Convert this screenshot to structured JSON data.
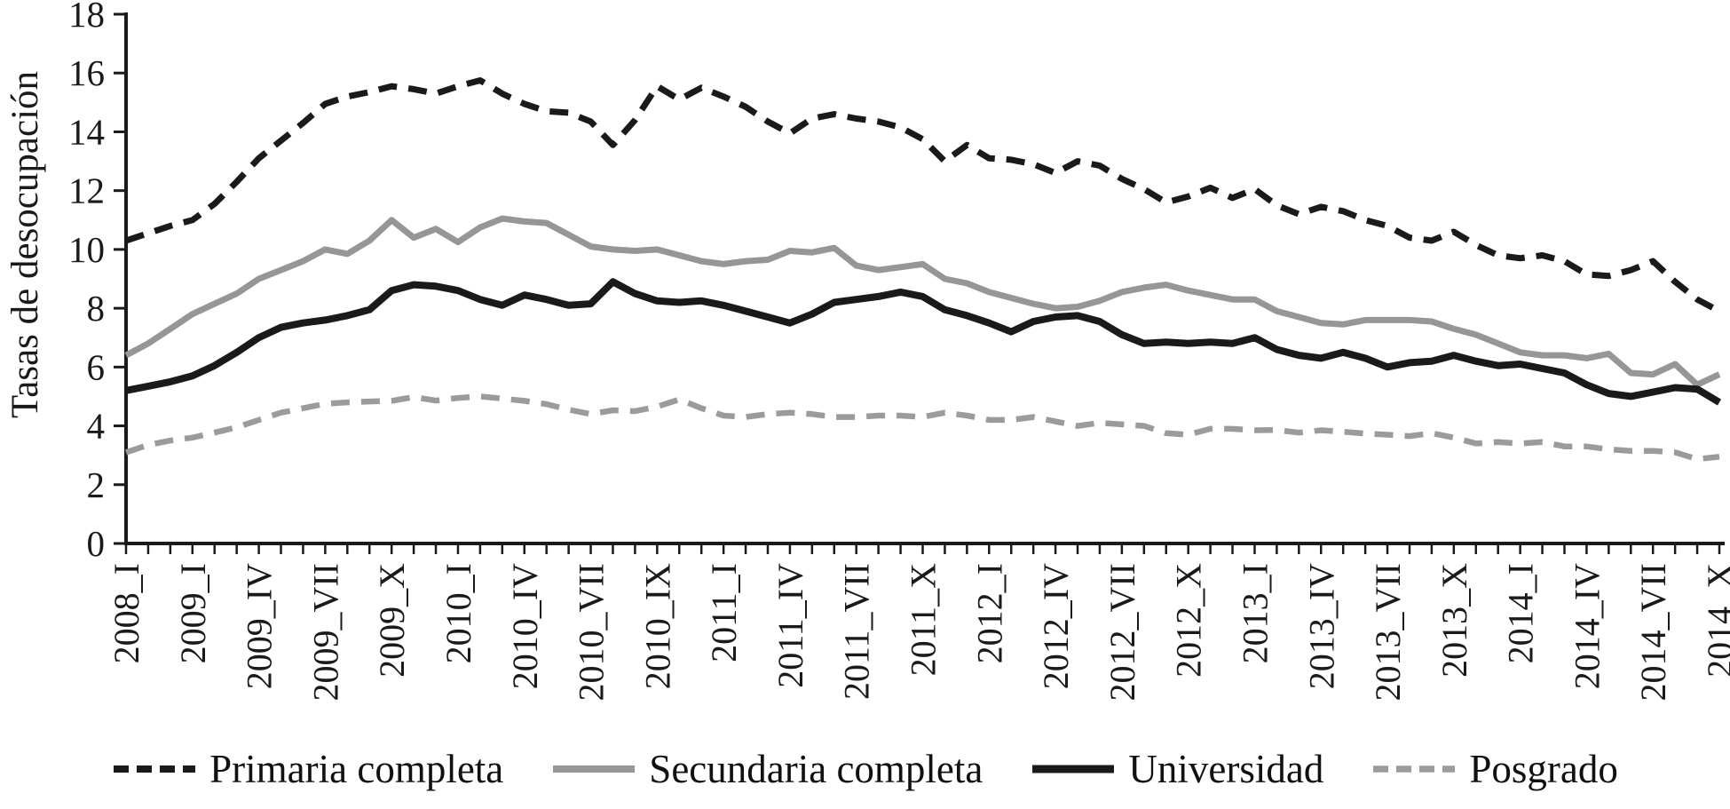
{
  "chart_data": {
    "type": "line",
    "title": "",
    "xlabel": "",
    "ylabel": "Tasas de desocupación",
    "ylim": [
      0,
      18
    ],
    "yticks": [
      0,
      2,
      4,
      6,
      8,
      10,
      12,
      14,
      16,
      18
    ],
    "grid": false,
    "legend_position": "bottom",
    "x_tick_count": 73,
    "x_label_interval": 3,
    "x_labels": [
      "2008_I",
      "2009_I",
      "2009_IV",
      "2009_VII",
      "2009_X",
      "2010_I",
      "2010_IV",
      "2010_VII",
      "2010_IX",
      "2011_I",
      "2011_IV",
      "2011_VII",
      "2011_X",
      "2012_I",
      "2012_IV",
      "2012_VII",
      "2012_X",
      "2013_I",
      "2013_IV",
      "2013_VII",
      "2013_X",
      "2014_I",
      "2014_IV",
      "2014_VII",
      "2014_X"
    ],
    "series": [
      {
        "name": "Primaria completa",
        "color": "#1a1a1a",
        "dashed": true,
        "width": 7,
        "values": [
          10.3,
          10.55,
          10.8,
          11.0,
          11.55,
          12.3,
          13.1,
          13.7,
          14.3,
          14.95,
          15.2,
          15.35,
          15.55,
          15.45,
          15.3,
          15.55,
          15.75,
          15.3,
          14.95,
          14.7,
          14.65,
          14.35,
          13.55,
          14.4,
          15.55,
          15.1,
          15.5,
          15.2,
          14.85,
          14.35,
          13.95,
          14.45,
          14.6,
          14.45,
          14.35,
          14.15,
          13.75,
          13.0,
          13.55,
          13.1,
          13.05,
          12.9,
          12.6,
          13.0,
          12.85,
          12.4,
          12.05,
          11.6,
          11.8,
          12.1,
          11.75,
          12.05,
          11.5,
          11.2,
          11.45,
          11.3,
          11.0,
          10.8,
          10.4,
          10.3,
          10.6,
          10.15,
          9.8,
          9.7,
          9.8,
          9.6,
          9.15,
          9.1,
          9.3,
          9.6,
          8.9,
          8.3,
          7.9
        ]
      },
      {
        "name": "Secundaria completa",
        "color": "#969696",
        "dashed": false,
        "width": 7,
        "values": [
          6.4,
          6.8,
          7.3,
          7.8,
          8.15,
          8.5,
          9.0,
          9.3,
          9.6,
          10.0,
          9.85,
          10.3,
          11.0,
          10.4,
          10.7,
          10.25,
          10.75,
          11.05,
          10.95,
          10.9,
          10.5,
          10.1,
          10.0,
          9.95,
          10.0,
          9.8,
          9.6,
          9.5,
          9.6,
          9.65,
          9.95,
          9.9,
          10.05,
          9.45,
          9.3,
          9.4,
          9.5,
          9.0,
          8.85,
          8.55,
          8.35,
          8.15,
          8.0,
          8.05,
          8.25,
          8.55,
          8.7,
          8.8,
          8.6,
          8.45,
          8.3,
          8.3,
          7.9,
          7.7,
          7.5,
          7.45,
          7.6,
          7.6,
          7.6,
          7.55,
          7.3,
          7.1,
          6.8,
          6.5,
          6.4,
          6.4,
          6.3,
          6.45,
          5.8,
          5.75,
          6.1,
          5.4,
          5.75
        ]
      },
      {
        "name": "Universidad",
        "color": "#1a1a1a",
        "dashed": false,
        "width": 8,
        "values": [
          5.2,
          5.35,
          5.5,
          5.7,
          6.05,
          6.5,
          7.0,
          7.35,
          7.5,
          7.6,
          7.75,
          7.95,
          8.6,
          8.8,
          8.75,
          8.6,
          8.3,
          8.1,
          8.45,
          8.3,
          8.1,
          8.15,
          8.9,
          8.5,
          8.25,
          8.2,
          8.25,
          8.1,
          7.9,
          7.7,
          7.5,
          7.8,
          8.2,
          8.3,
          8.4,
          8.55,
          8.4,
          7.95,
          7.75,
          7.5,
          7.2,
          7.55,
          7.7,
          7.75,
          7.55,
          7.1,
          6.8,
          6.85,
          6.8,
          6.85,
          6.8,
          7.0,
          6.6,
          6.4,
          6.3,
          6.5,
          6.3,
          6.0,
          6.15,
          6.2,
          6.4,
          6.2,
          6.05,
          6.1,
          5.95,
          5.8,
          5.4,
          5.1,
          5.0,
          5.15,
          5.3,
          5.25,
          4.8
        ]
      },
      {
        "name": "Posgrado",
        "color": "#9b9b9b",
        "dashed": true,
        "width": 6.5,
        "values": [
          3.1,
          3.35,
          3.5,
          3.6,
          3.77,
          3.95,
          4.2,
          4.45,
          4.6,
          4.75,
          4.8,
          4.83,
          4.85,
          4.98,
          4.86,
          4.95,
          5.0,
          4.93,
          4.85,
          4.74,
          4.55,
          4.4,
          4.53,
          4.5,
          4.65,
          4.9,
          4.6,
          4.35,
          4.3,
          4.4,
          4.45,
          4.4,
          4.3,
          4.3,
          4.35,
          4.35,
          4.3,
          4.45,
          4.35,
          4.2,
          4.2,
          4.3,
          4.15,
          4.0,
          4.1,
          4.05,
          4.0,
          3.75,
          3.7,
          3.9,
          3.9,
          3.85,
          3.86,
          3.77,
          3.85,
          3.8,
          3.74,
          3.7,
          3.65,
          3.75,
          3.6,
          3.4,
          3.45,
          3.4,
          3.45,
          3.3,
          3.3,
          3.2,
          3.15,
          3.15,
          3.1,
          2.87,
          2.95
        ]
      }
    ]
  }
}
